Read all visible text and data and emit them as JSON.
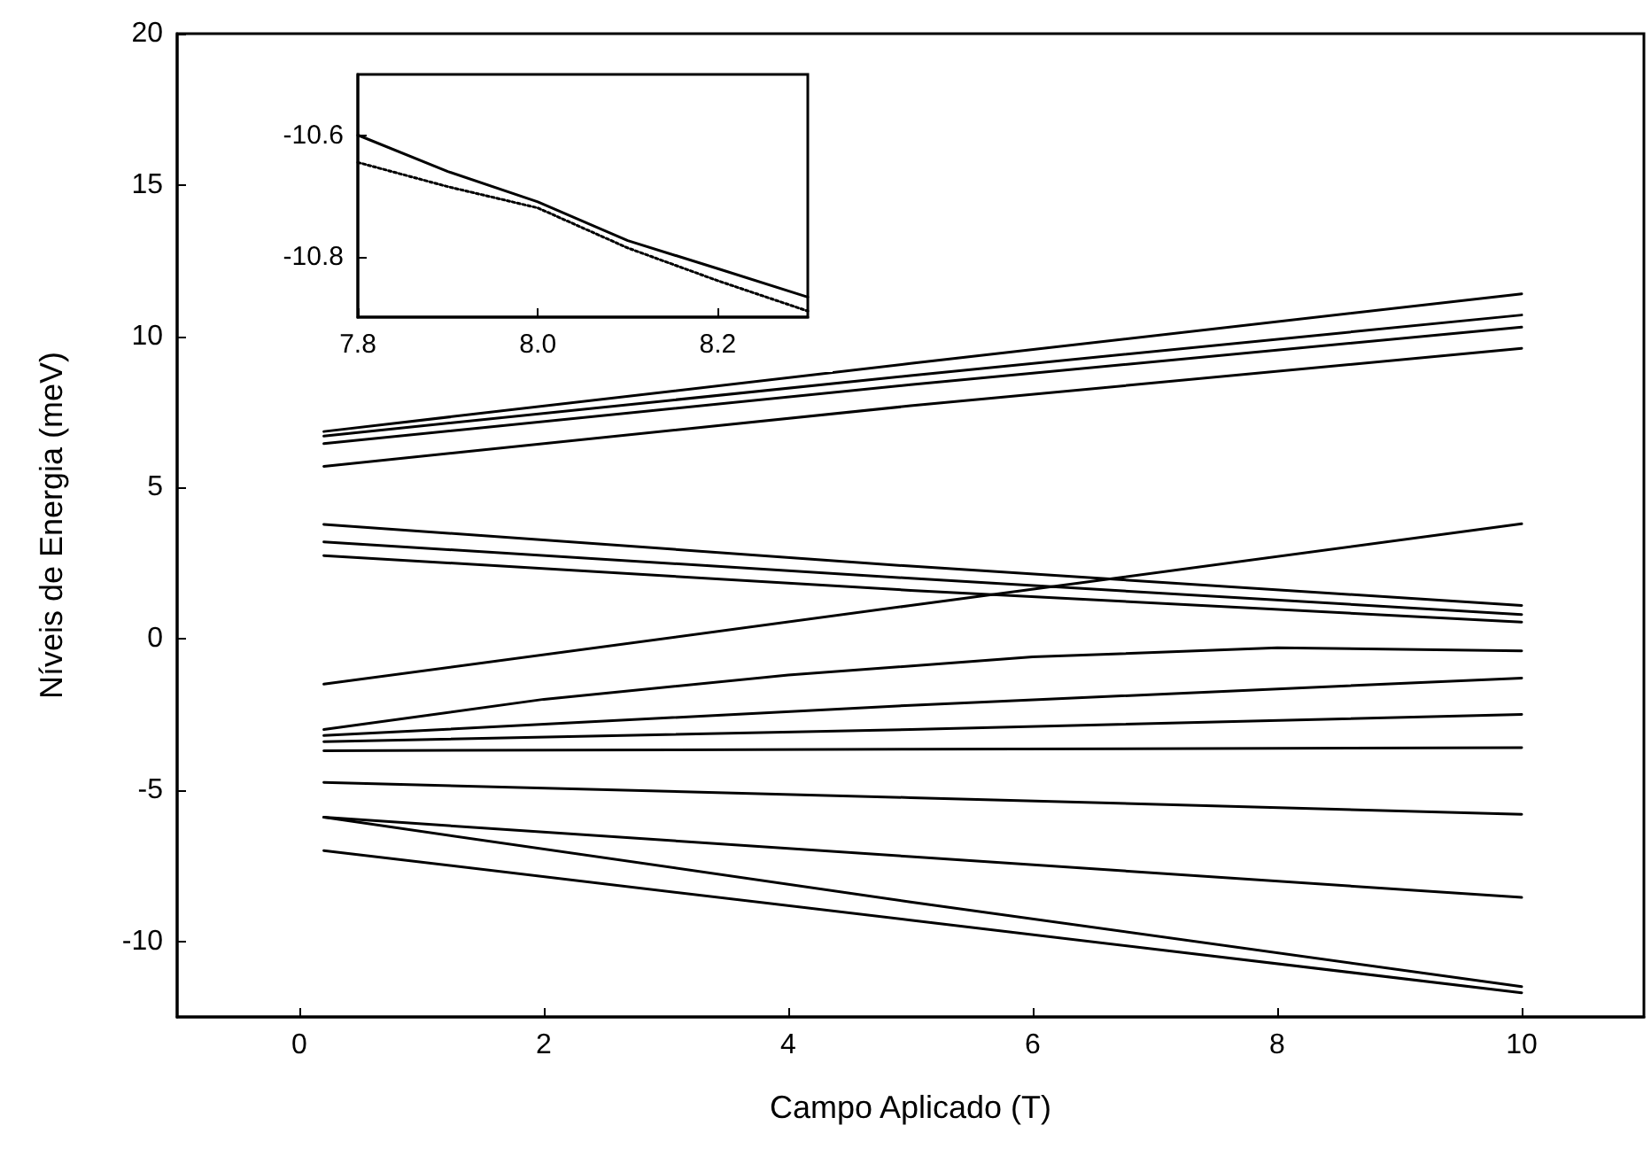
{
  "chart_data": [
    {
      "type": "line",
      "xlabel": "Campo Aplicado (T)",
      "ylabel": "Níveis de Energia (meV)",
      "xlim": [
        -1,
        11
      ],
      "ylim": [
        -12.5,
        20
      ],
      "xticks": [
        0,
        2,
        4,
        6,
        8,
        10
      ],
      "yticks": [
        -10,
        -5,
        0,
        5,
        10,
        15,
        20
      ],
      "grid": false,
      "series": [
        {
          "color": "#000000",
          "x": [
            0.2,
            5,
            10
          ],
          "values": [
            6.85,
            9.1,
            11.4
          ]
        },
        {
          "color": "#000000",
          "x": [
            0.2,
            5,
            10
          ],
          "values": [
            6.7,
            8.7,
            10.7
          ]
        },
        {
          "color": "#000000",
          "x": [
            0.2,
            5,
            10
          ],
          "values": [
            6.45,
            8.4,
            10.3
          ]
        },
        {
          "color": "#000000",
          "x": [
            0.2,
            5,
            10
          ],
          "values": [
            5.7,
            7.7,
            9.6
          ]
        },
        {
          "color": "#000000",
          "x": [
            0.2,
            5,
            10
          ],
          "values": [
            3.78,
            2.4,
            1.1
          ]
        },
        {
          "color": "#000000",
          "x": [
            0.2,
            5,
            10
          ],
          "values": [
            3.2,
            2.0,
            0.8
          ]
        },
        {
          "color": "#000000",
          "x": [
            0.2,
            5,
            10
          ],
          "values": [
            2.75,
            1.6,
            0.55
          ]
        },
        {
          "color": "#000000",
          "x": [
            0.2,
            5,
            10
          ],
          "values": [
            -1.5,
            1.1,
            3.8
          ]
        },
        {
          "color": "#000000",
          "x": [
            0.2,
            2,
            4,
            6,
            8,
            10
          ],
          "values": [
            -3.0,
            -2.0,
            -1.2,
            -0.6,
            -0.3,
            -0.4
          ]
        },
        {
          "color": "#000000",
          "x": [
            0.2,
            5,
            10
          ],
          "values": [
            -3.2,
            -2.2,
            -1.3
          ]
        },
        {
          "color": "#000000",
          "x": [
            0.2,
            5,
            10
          ],
          "values": [
            -3.4,
            -3.0,
            -2.5
          ]
        },
        {
          "color": "#000000",
          "x": [
            0.2,
            5,
            10
          ],
          "values": [
            -3.7,
            -3.65,
            -3.6
          ]
        },
        {
          "color": "#000000",
          "x": [
            0.2,
            5,
            10
          ],
          "values": [
            -4.75,
            -5.25,
            -5.8
          ]
        },
        {
          "color": "#000000",
          "x": [
            0.2,
            5,
            10
          ],
          "values": [
            -5.9,
            -7.2,
            -8.55
          ]
        },
        {
          "color": "#000000",
          "x": [
            0.2,
            5,
            10
          ],
          "values": [
            -5.9,
            -8.7,
            -11.5
          ]
        },
        {
          "color": "#000000",
          "x": [
            0.2,
            5,
            10
          ],
          "values": [
            -7.0,
            -9.3,
            -11.7
          ]
        }
      ]
    },
    {
      "type": "line",
      "xlim": [
        7.8,
        8.3
      ],
      "ylim": [
        -10.9,
        -10.5
      ],
      "xticks": [
        7.8,
        {
          "value": 8,
          "label": "8.0"
        },
        8.2
      ],
      "yticks": [
        -10.6,
        -10.8
      ],
      "grid": false,
      "series": [
        {
          "color": "#000000",
          "line_style": "solid",
          "x": [
            7.8,
            7.9,
            8.0,
            8.1,
            8.2,
            8.3
          ],
          "values": [
            -10.6,
            -10.66,
            -10.71,
            -10.774,
            -10.82,
            -10.867
          ]
        },
        {
          "color": "#000000",
          "line_style": "dotted",
          "x": [
            7.8,
            7.9,
            8.0,
            8.1,
            8.2,
            8.3
          ],
          "values": [
            -10.645,
            -10.685,
            -10.72,
            -10.786,
            -10.84,
            -10.89
          ]
        }
      ]
    }
  ]
}
